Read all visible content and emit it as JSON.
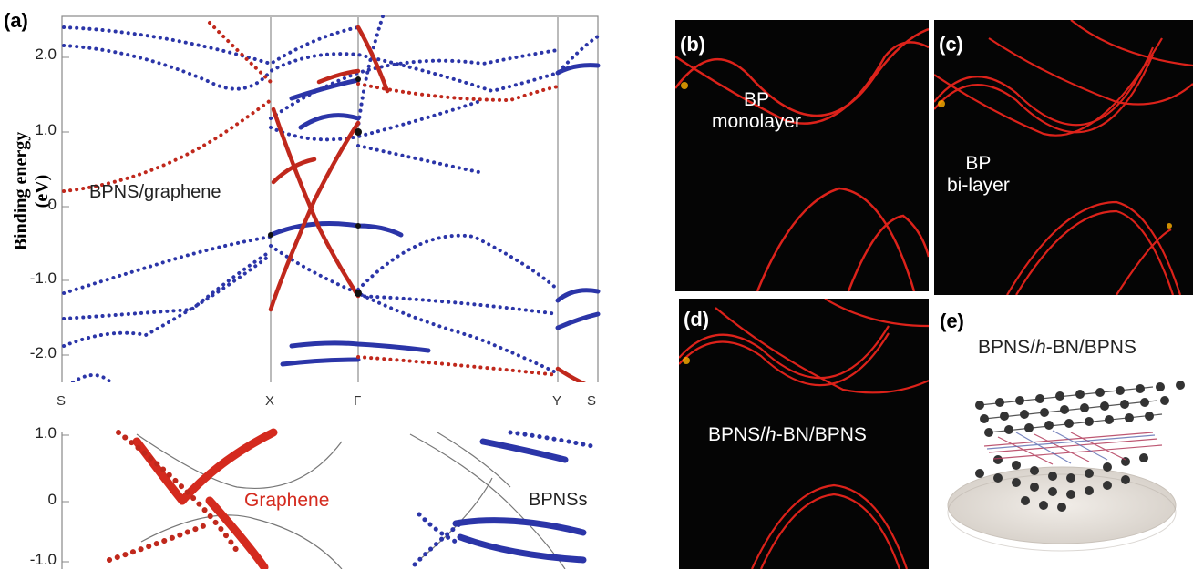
{
  "panel_a": {
    "label": "(a)",
    "ylabel": "Binding energy (eV)",
    "yticks": [
      "2.0",
      "1.0",
      "0",
      "-1.0",
      "-2.0"
    ],
    "xticks": [
      "S",
      "X",
      "Γ",
      "Y",
      "S"
    ],
    "annotation": "BPNS/graphene",
    "inset": {
      "yticks": [
        "1.0",
        "0",
        "-1.0"
      ],
      "graphene_label": "Graphene",
      "bpns_label": "BPNSs"
    },
    "colors": {
      "graphene": "#c0281c",
      "bpns": "#2b35a8"
    }
  },
  "panel_b": {
    "label": "(b)",
    "text_line1": "BP",
    "text_line2": "monolayer"
  },
  "panel_c": {
    "label": "(c)",
    "text_line1": "BP",
    "text_line2": "bi-layer"
  },
  "panel_d": {
    "label": "(d)",
    "text_pre": "BPNS/",
    "text_italic": "h",
    "text_post": "-BN/BPNS"
  },
  "panel_e": {
    "label": "(e)",
    "text_pre": "BPNS/",
    "text_italic": "h",
    "text_post": "-BN/BPNS"
  }
}
